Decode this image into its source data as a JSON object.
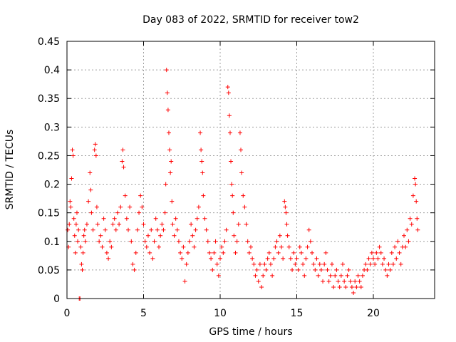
{
  "chart_data": {
    "type": "scatter",
    "title": "Day 083 of 2022, SRMTID for receiver tow2",
    "xlabel": "GPS time / hours",
    "ylabel": "SRMTID / TECUs",
    "xlim": [
      0,
      24
    ],
    "ylim": [
      0,
      0.45
    ],
    "xticks": [
      0,
      5,
      10,
      15,
      20
    ],
    "xtick_labels": [
      "0",
      "5",
      "10",
      "15",
      "20"
    ],
    "yticks": [
      0,
      0.05,
      0.1,
      0.15,
      0.2,
      0.25,
      0.3,
      0.35,
      0.4,
      0.45
    ],
    "ytick_labels": [
      "0",
      "0.05",
      "0.1",
      "0.15",
      "0.2",
      "0.25",
      "0.3",
      "0.35",
      "0.4",
      "0.45"
    ],
    "grid": true,
    "marker": "plus",
    "color": "#ff0000",
    "series": [
      {
        "name": "SRMTID tow2",
        "points": [
          [
            0.05,
            0.12
          ],
          [
            0.1,
            0.09
          ],
          [
            0.15,
            0.13
          ],
          [
            0.2,
            0.17
          ],
          [
            0.25,
            0.16
          ],
          [
            0.3,
            0.21
          ],
          [
            0.35,
            0.26
          ],
          [
            0.4,
            0.25
          ],
          [
            0.45,
            0.14
          ],
          [
            0.5,
            0.11
          ],
          [
            0.55,
            0.08
          ],
          [
            0.6,
            0.13
          ],
          [
            0.65,
            0.15
          ],
          [
            0.7,
            0.1
          ],
          [
            0.75,
            0.12
          ],
          [
            0.8,
            0.0
          ],
          [
            0.85,
            0.0
          ],
          [
            0.9,
            0.09
          ],
          [
            0.95,
            0.06
          ],
          [
            1.0,
            0.05
          ],
          [
            1.05,
            0.08
          ],
          [
            1.1,
            0.11
          ],
          [
            1.15,
            0.12
          ],
          [
            1.2,
            0.1
          ],
          [
            1.3,
            0.13
          ],
          [
            1.4,
            0.17
          ],
          [
            1.5,
            0.22
          ],
          [
            1.55,
            0.19
          ],
          [
            1.6,
            0.15
          ],
          [
            1.7,
            0.12
          ],
          [
            1.8,
            0.26
          ],
          [
            1.85,
            0.27
          ],
          [
            1.9,
            0.25
          ],
          [
            1.95,
            0.16
          ],
          [
            2.0,
            0.13
          ],
          [
            2.1,
            0.1
          ],
          [
            2.2,
            0.11
          ],
          [
            2.3,
            0.09
          ],
          [
            2.4,
            0.14
          ],
          [
            2.5,
            0.12
          ],
          [
            2.6,
            0.08
          ],
          [
            2.7,
            0.07
          ],
          [
            2.8,
            0.1
          ],
          [
            2.9,
            0.09
          ],
          [
            3.0,
            0.13
          ],
          [
            3.1,
            0.14
          ],
          [
            3.2,
            0.12
          ],
          [
            3.3,
            0.15
          ],
          [
            3.4,
            0.13
          ],
          [
            3.5,
            0.16
          ],
          [
            3.6,
            0.24
          ],
          [
            3.65,
            0.26
          ],
          [
            3.7,
            0.23
          ],
          [
            3.8,
            0.18
          ],
          [
            3.9,
            0.14
          ],
          [
            4.0,
            0.12
          ],
          [
            4.1,
            0.16
          ],
          [
            4.2,
            0.1
          ],
          [
            4.3,
            0.06
          ],
          [
            4.4,
            0.05
          ],
          [
            4.5,
            0.08
          ],
          [
            4.6,
            0.12
          ],
          [
            4.7,
            0.15
          ],
          [
            4.8,
            0.18
          ],
          [
            4.9,
            0.16
          ],
          [
            5.0,
            0.13
          ],
          [
            5.1,
            0.1
          ],
          [
            5.2,
            0.09
          ],
          [
            5.3,
            0.11
          ],
          [
            5.4,
            0.08
          ],
          [
            5.5,
            0.12
          ],
          [
            5.6,
            0.07
          ],
          [
            5.7,
            0.1
          ],
          [
            5.8,
            0.14
          ],
          [
            5.9,
            0.12
          ],
          [
            6.0,
            0.09
          ],
          [
            6.1,
            0.11
          ],
          [
            6.2,
            0.13
          ],
          [
            6.3,
            0.12
          ],
          [
            6.4,
            0.15
          ],
          [
            6.45,
            0.2
          ],
          [
            6.5,
            0.4
          ],
          [
            6.55,
            0.36
          ],
          [
            6.6,
            0.33
          ],
          [
            6.65,
            0.29
          ],
          [
            6.7,
            0.26
          ],
          [
            6.75,
            0.22
          ],
          [
            6.8,
            0.24
          ],
          [
            6.85,
            0.17
          ],
          [
            6.9,
            0.13
          ],
          [
            7.0,
            0.11
          ],
          [
            7.1,
            0.14
          ],
          [
            7.2,
            0.12
          ],
          [
            7.3,
            0.1
          ],
          [
            7.4,
            0.08
          ],
          [
            7.5,
            0.07
          ],
          [
            7.6,
            0.09
          ],
          [
            7.7,
            0.03
          ],
          [
            7.8,
            0.06
          ],
          [
            7.9,
            0.08
          ],
          [
            8.0,
            0.1
          ],
          [
            8.1,
            0.13
          ],
          [
            8.2,
            0.11
          ],
          [
            8.3,
            0.09
          ],
          [
            8.4,
            0.12
          ],
          [
            8.5,
            0.14
          ],
          [
            8.6,
            0.16
          ],
          [
            8.7,
            0.29
          ],
          [
            8.75,
            0.26
          ],
          [
            8.8,
            0.24
          ],
          [
            8.85,
            0.22
          ],
          [
            8.9,
            0.18
          ],
          [
            9.0,
            0.14
          ],
          [
            9.1,
            0.12
          ],
          [
            9.2,
            0.1
          ],
          [
            9.3,
            0.08
          ],
          [
            9.4,
            0.07
          ],
          [
            9.5,
            0.05
          ],
          [
            9.6,
            0.08
          ],
          [
            9.7,
            0.1
          ],
          [
            9.8,
            0.06
          ],
          [
            9.9,
            0.04
          ],
          [
            10.0,
            0.07
          ],
          [
            10.1,
            0.09
          ],
          [
            10.2,
            0.08
          ],
          [
            10.3,
            0.1
          ],
          [
            10.4,
            0.12
          ],
          [
            10.5,
            0.37
          ],
          [
            10.55,
            0.36
          ],
          [
            10.6,
            0.32
          ],
          [
            10.65,
            0.29
          ],
          [
            10.7,
            0.24
          ],
          [
            10.75,
            0.2
          ],
          [
            10.8,
            0.18
          ],
          [
            10.85,
            0.15
          ],
          [
            10.9,
            0.11
          ],
          [
            11.0,
            0.08
          ],
          [
            11.1,
            0.1
          ],
          [
            11.2,
            0.13
          ],
          [
            11.3,
            0.29
          ],
          [
            11.35,
            0.26
          ],
          [
            11.4,
            0.22
          ],
          [
            11.5,
            0.18
          ],
          [
            11.6,
            0.16
          ],
          [
            11.7,
            0.13
          ],
          [
            11.8,
            0.1
          ],
          [
            11.9,
            0.08
          ],
          [
            12.0,
            0.09
          ],
          [
            12.1,
            0.07
          ],
          [
            12.2,
            0.06
          ],
          [
            12.3,
            0.04
          ],
          [
            12.4,
            0.05
          ],
          [
            12.5,
            0.03
          ],
          [
            12.6,
            0.06
          ],
          [
            12.7,
            0.02
          ],
          [
            12.8,
            0.04
          ],
          [
            12.9,
            0.06
          ],
          [
            13.0,
            0.05
          ],
          [
            13.1,
            0.07
          ],
          [
            13.2,
            0.08
          ],
          [
            13.3,
            0.06
          ],
          [
            13.4,
            0.04
          ],
          [
            13.5,
            0.07
          ],
          [
            13.6,
            0.09
          ],
          [
            13.7,
            0.1
          ],
          [
            13.8,
            0.08
          ],
          [
            13.9,
            0.11
          ],
          [
            14.0,
            0.09
          ],
          [
            14.1,
            0.07
          ],
          [
            14.2,
            0.17
          ],
          [
            14.25,
            0.16
          ],
          [
            14.3,
            0.15
          ],
          [
            14.35,
            0.13
          ],
          [
            14.4,
            0.11
          ],
          [
            14.5,
            0.09
          ],
          [
            14.6,
            0.07
          ],
          [
            14.7,
            0.05
          ],
          [
            14.8,
            0.08
          ],
          [
            14.9,
            0.06
          ],
          [
            15.0,
            0.07
          ],
          [
            15.1,
            0.05
          ],
          [
            15.2,
            0.09
          ],
          [
            15.3,
            0.08
          ],
          [
            15.4,
            0.06
          ],
          [
            15.5,
            0.04
          ],
          [
            15.6,
            0.07
          ],
          [
            15.7,
            0.09
          ],
          [
            15.8,
            0.12
          ],
          [
            15.9,
            0.1
          ],
          [
            16.0,
            0.08
          ],
          [
            16.1,
            0.06
          ],
          [
            16.2,
            0.05
          ],
          [
            16.3,
            0.07
          ],
          [
            16.4,
            0.04
          ],
          [
            16.5,
            0.06
          ],
          [
            16.6,
            0.05
          ],
          [
            16.7,
            0.03
          ],
          [
            16.8,
            0.06
          ],
          [
            16.9,
            0.08
          ],
          [
            17.0,
            0.05
          ],
          [
            17.1,
            0.03
          ],
          [
            17.2,
            0.04
          ],
          [
            17.3,
            0.06
          ],
          [
            17.4,
            0.02
          ],
          [
            17.5,
            0.04
          ],
          [
            17.6,
            0.05
          ],
          [
            17.7,
            0.03
          ],
          [
            17.8,
            0.02
          ],
          [
            17.9,
            0.04
          ],
          [
            18.0,
            0.06
          ],
          [
            18.1,
            0.03
          ],
          [
            18.2,
            0.02
          ],
          [
            18.3,
            0.04
          ],
          [
            18.4,
            0.05
          ],
          [
            18.5,
            0.03
          ],
          [
            18.6,
            0.02
          ],
          [
            18.7,
            0.01
          ],
          [
            18.8,
            0.03
          ],
          [
            18.9,
            0.02
          ],
          [
            19.0,
            0.04
          ],
          [
            19.1,
            0.03
          ],
          [
            19.2,
            0.02
          ],
          [
            19.3,
            0.04
          ],
          [
            19.4,
            0.05
          ],
          [
            19.5,
            0.06
          ],
          [
            19.6,
            0.05
          ],
          [
            19.7,
            0.07
          ],
          [
            19.8,
            0.06
          ],
          [
            19.9,
            0.08
          ],
          [
            20.0,
            0.07
          ],
          [
            20.1,
            0.06
          ],
          [
            20.2,
            0.08
          ],
          [
            20.3,
            0.07
          ],
          [
            20.4,
            0.09
          ],
          [
            20.5,
            0.08
          ],
          [
            20.6,
            0.06
          ],
          [
            20.7,
            0.07
          ],
          [
            20.8,
            0.05
          ],
          [
            20.9,
            0.04
          ],
          [
            21.0,
            0.06
          ],
          [
            21.1,
            0.05
          ],
          [
            21.2,
            0.08
          ],
          [
            21.3,
            0.06
          ],
          [
            21.4,
            0.09
          ],
          [
            21.5,
            0.07
          ],
          [
            21.6,
            0.1
          ],
          [
            21.7,
            0.08
          ],
          [
            21.8,
            0.06
          ],
          [
            21.9,
            0.09
          ],
          [
            22.0,
            0.11
          ],
          [
            22.1,
            0.09
          ],
          [
            22.2,
            0.12
          ],
          [
            22.3,
            0.1
          ],
          [
            22.4,
            0.14
          ],
          [
            22.5,
            0.13
          ],
          [
            22.6,
            0.18
          ],
          [
            22.7,
            0.21
          ],
          [
            22.75,
            0.2
          ],
          [
            22.8,
            0.17
          ],
          [
            22.85,
            0.14
          ],
          [
            22.9,
            0.12
          ]
        ]
      }
    ]
  }
}
